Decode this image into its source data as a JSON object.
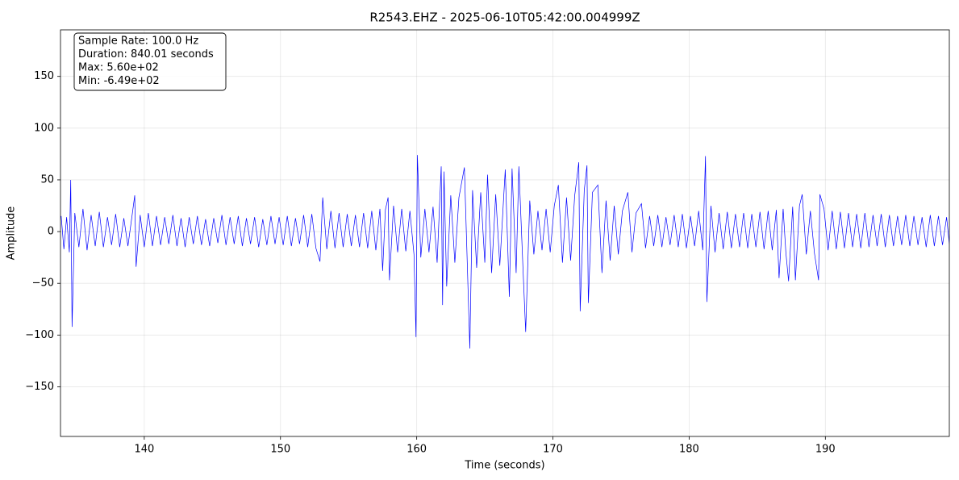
{
  "chart_data": {
    "type": "line",
    "title": "R2543.EHZ - 2025-06-10T05:42:00.004999Z",
    "xlabel": "Time (seconds)",
    "ylabel": "Amplitude",
    "annotation": [
      "Sample Rate: 100.0 Hz",
      "Duration: 840.01 seconds",
      "Max: 5.60e+02",
      "Min: -6.49e+02"
    ],
    "grid": true,
    "xlim": [
      133.85,
      199.1
    ],
    "xticks": [
      140,
      150,
      160,
      170,
      180,
      190
    ],
    "ylim": [
      -198,
      195
    ],
    "yticks": [
      {
        "value": -150,
        "label": "−150"
      },
      {
        "value": -100,
        "label": "−100"
      },
      {
        "value": -50,
        "label": "−50"
      },
      0,
      50,
      100,
      150
    ],
    "x": [
      133.9,
      134.1,
      134.3,
      134.5,
      134.6,
      134.7,
      134.9,
      135.2,
      135.5,
      135.8,
      136.1,
      136.4,
      136.7,
      137.0,
      137.3,
      137.6,
      137.9,
      138.2,
      138.5,
      138.8,
      139.1,
      139.3,
      139.4,
      139.7,
      140.0,
      140.3,
      140.6,
      140.9,
      141.2,
      141.5,
      141.8,
      142.1,
      142.4,
      142.7,
      143.0,
      143.3,
      143.6,
      143.9,
      144.2,
      144.5,
      144.8,
      145.1,
      145.4,
      145.7,
      146.0,
      146.3,
      146.6,
      146.9,
      147.2,
      147.5,
      147.8,
      148.1,
      148.4,
      148.7,
      149.0,
      149.3,
      149.6,
      149.9,
      150.2,
      150.5,
      150.8,
      151.1,
      151.4,
      151.7,
      152.0,
      152.3,
      152.6,
      152.9,
      153.1,
      153.4,
      153.7,
      154.0,
      154.3,
      154.6,
      154.9,
      155.2,
      155.5,
      155.8,
      156.1,
      156.4,
      156.7,
      157.0,
      157.3,
      157.5,
      157.7,
      157.9,
      158.0,
      158.3,
      158.6,
      158.9,
      159.2,
      159.5,
      159.8,
      159.95,
      160.05,
      160.3,
      160.6,
      160.9,
      161.2,
      161.5,
      161.8,
      161.9,
      162.0,
      162.2,
      162.5,
      162.8,
      163.1,
      163.5,
      163.9,
      164.1,
      164.4,
      164.7,
      165.0,
      165.2,
      165.5,
      165.8,
      166.1,
      166.5,
      166.8,
      167.0,
      167.3,
      167.5,
      167.8,
      168.0,
      168.3,
      168.6,
      168.9,
      169.2,
      169.5,
      169.8,
      170.1,
      170.4,
      170.7,
      171.0,
      171.3,
      171.6,
      171.9,
      172.0,
      172.3,
      172.5,
      172.6,
      172.9,
      173.3,
      173.6,
      173.9,
      174.2,
      174.5,
      174.8,
      175.1,
      175.5,
      175.8,
      176.1,
      176.5,
      176.8,
      177.1,
      177.4,
      177.7,
      178.0,
      178.3,
      178.6,
      178.9,
      179.2,
      179.5,
      179.8,
      180.1,
      180.4,
      180.7,
      181.0,
      181.2,
      181.3,
      181.6,
      181.9,
      182.2,
      182.5,
      182.8,
      183.1,
      183.4,
      183.7,
      184.0,
      184.3,
      184.6,
      184.9,
      185.2,
      185.5,
      185.8,
      186.1,
      186.4,
      186.6,
      186.9,
      187.1,
      187.3,
      187.6,
      187.8,
      188.1,
      188.3,
      188.6,
      188.9,
      189.2,
      189.5,
      189.6,
      189.9,
      190.2,
      190.5,
      190.8,
      191.1,
      191.4,
      191.7,
      192.0,
      192.3,
      192.6,
      192.9,
      193.2,
      193.5,
      193.8,
      194.1,
      194.4,
      194.7,
      195.0,
      195.3,
      195.6,
      195.9,
      196.2,
      196.5,
      196.8,
      197.1,
      197.4,
      197.7,
      198.0,
      198.3,
      198.6,
      198.9,
      199.1
    ],
    "series": [
      {
        "color": "#0000ff",
        "values": [
          15,
          -17,
          14,
          -20,
          50,
          -92,
          18,
          -15,
          22,
          -18,
          16,
          -14,
          19,
          -15,
          14,
          -13,
          17,
          -15,
          13,
          -14,
          15,
          35,
          -34,
          16,
          -15,
          18,
          -14,
          15,
          -13,
          14,
          -12,
          16,
          -14,
          13,
          -15,
          14,
          -12,
          15,
          -13,
          12,
          -14,
          13,
          -11,
          16,
          -13,
          14,
          -12,
          15,
          -14,
          13,
          -12,
          14,
          -15,
          12,
          -13,
          15,
          -12,
          14,
          -13,
          15,
          -14,
          13,
          -12,
          16,
          -15,
          17,
          -16,
          -29,
          33,
          -17,
          20,
          -16,
          18,
          -15,
          17,
          -14,
          16,
          -15,
          18,
          -16,
          20,
          -18,
          22,
          -38,
          21,
          33,
          -47,
          25,
          -20,
          22,
          -19,
          20,
          -22,
          -102,
          74,
          -25,
          22,
          -20,
          24,
          -30,
          63,
          -71,
          58,
          -53,
          35,
          -30,
          33,
          62,
          -113,
          40,
          -35,
          38,
          -30,
          55,
          -40,
          36,
          -33,
          60,
          -63,
          61,
          -40,
          63,
          -35,
          -97,
          30,
          -22,
          20,
          -18,
          22,
          -20,
          25,
          45,
          -30,
          33,
          -28,
          35,
          67,
          -77,
          40,
          64,
          -69,
          38,
          45,
          -40,
          30,
          -28,
          25,
          -22,
          20,
          38,
          -20,
          18,
          27,
          -16,
          15,
          -14,
          16,
          -15,
          14,
          -13,
          16,
          -15,
          17,
          -16,
          15,
          -14,
          20,
          -18,
          73,
          -68,
          25,
          -20,
          18,
          -17,
          19,
          -16,
          17,
          -15,
          18,
          -16,
          17,
          -15,
          19,
          -17,
          20,
          -18,
          21,
          -45,
          22,
          -20,
          -48,
          24,
          -47,
          25,
          36,
          -22,
          20,
          -21,
          -47,
          36,
          22,
          -18,
          20,
          -17,
          19,
          -16,
          18,
          -15,
          17,
          -16,
          18,
          -15,
          16,
          -14,
          17,
          -15,
          16,
          -14,
          15,
          -13,
          16,
          -14,
          15,
          -13,
          14,
          -15,
          16,
          -14,
          15,
          -13,
          14,
          -12
        ]
      }
    ]
  }
}
